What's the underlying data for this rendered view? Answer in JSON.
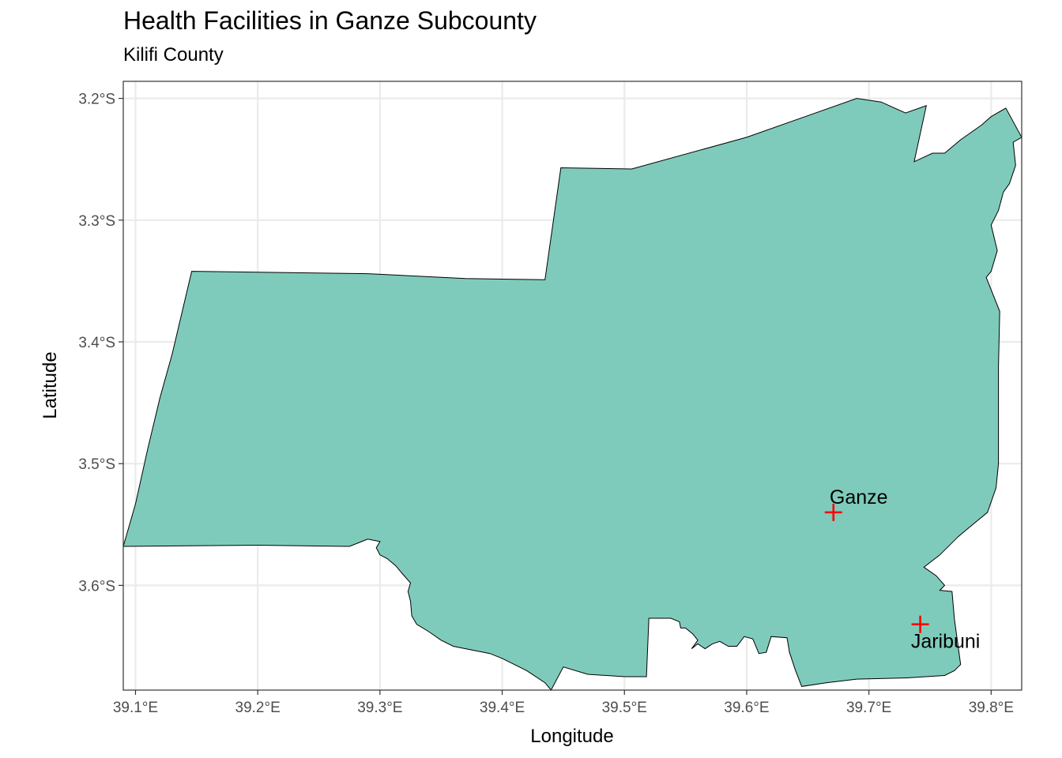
{
  "title": "Health Facilities in Ganze Subcounty",
  "subtitle": "Kilifi County",
  "chart_data": {
    "type": "map",
    "title": "Health Facilities in Ganze Subcounty",
    "subtitle": "Kilifi County",
    "xlabel": "Longitude",
    "ylabel": "Latitude",
    "xlim": [
      39.09,
      39.825
    ],
    "ylim": [
      -3.686,
      -3.186
    ],
    "x_ticks": [
      {
        "value": 39.1,
        "label": "39.1°E"
      },
      {
        "value": 39.2,
        "label": "39.2°E"
      },
      {
        "value": 39.3,
        "label": "39.3°E"
      },
      {
        "value": 39.4,
        "label": "39.4°E"
      },
      {
        "value": 39.5,
        "label": "39.5°E"
      },
      {
        "value": 39.6,
        "label": "39.6°E"
      },
      {
        "value": 39.7,
        "label": "39.7°E"
      },
      {
        "value": 39.8,
        "label": "39.8°E"
      }
    ],
    "y_ticks": [
      {
        "value": -3.2,
        "label": "3.2°S"
      },
      {
        "value": -3.3,
        "label": "3.3°S"
      },
      {
        "value": -3.4,
        "label": "3.4°S"
      },
      {
        "value": -3.5,
        "label": "3.5°S"
      },
      {
        "value": -3.6,
        "label": "3.6°S"
      }
    ],
    "grid": true,
    "polygon_fill": "#7fcbbb",
    "polygon_stroke": "#000000",
    "marker_color": "#ff0000",
    "boundary": [
      [
        39.09,
        -3.568
      ],
      [
        39.1,
        -3.533
      ],
      [
        39.11,
        -3.488
      ],
      [
        39.12,
        -3.446
      ],
      [
        39.13,
        -3.41
      ],
      [
        39.146,
        -3.342
      ],
      [
        39.29,
        -3.344
      ],
      [
        39.37,
        -3.348
      ],
      [
        39.435,
        -3.349
      ],
      [
        39.448,
        -3.257
      ],
      [
        39.506,
        -3.258
      ],
      [
        39.6,
        -3.232
      ],
      [
        39.69,
        -3.2
      ],
      [
        39.71,
        -3.203
      ],
      [
        39.73,
        -3.212
      ],
      [
        39.747,
        -3.206
      ],
      [
        39.737,
        -3.252
      ],
      [
        39.752,
        -3.245
      ],
      [
        39.762,
        -3.245
      ],
      [
        39.775,
        -3.234
      ],
      [
        39.792,
        -3.222
      ],
      [
        39.8,
        -3.215
      ],
      [
        39.812,
        -3.208
      ],
      [
        39.825,
        -3.232
      ],
      [
        39.818,
        -3.236
      ],
      [
        39.82,
        -3.255
      ],
      [
        39.815,
        -3.27
      ],
      [
        39.81,
        -3.277
      ],
      [
        39.806,
        -3.292
      ],
      [
        39.8,
        -3.304
      ],
      [
        39.805,
        -3.325
      ],
      [
        39.8,
        -3.342
      ],
      [
        39.796,
        -3.347
      ],
      [
        39.807,
        -3.375
      ],
      [
        39.806,
        -3.42
      ],
      [
        39.806,
        -3.5
      ],
      [
        39.804,
        -3.52
      ],
      [
        39.797,
        -3.54
      ],
      [
        39.785,
        -3.55
      ],
      [
        39.773,
        -3.56
      ],
      [
        39.758,
        -3.575
      ],
      [
        39.745,
        -3.585
      ],
      [
        39.755,
        -3.592
      ],
      [
        39.762,
        -3.6
      ],
      [
        39.758,
        -3.604
      ],
      [
        39.768,
        -3.605
      ],
      [
        39.77,
        -3.628
      ],
      [
        39.775,
        -3.665
      ],
      [
        39.77,
        -3.67
      ],
      [
        39.762,
        -3.674
      ],
      [
        39.73,
        -3.676
      ],
      [
        39.69,
        -3.677
      ],
      [
        39.665,
        -3.68
      ],
      [
        39.645,
        -3.683
      ],
      [
        39.64,
        -3.67
      ],
      [
        39.635,
        -3.655
      ],
      [
        39.633,
        -3.643
      ],
      [
        39.62,
        -3.642
      ],
      [
        39.616,
        -3.655
      ],
      [
        39.61,
        -3.656
      ],
      [
        39.605,
        -3.644
      ],
      [
        39.598,
        -3.642
      ],
      [
        39.592,
        -3.65
      ],
      [
        39.585,
        -3.65
      ],
      [
        39.578,
        -3.646
      ],
      [
        39.572,
        -3.648
      ],
      [
        39.566,
        -3.652
      ],
      [
        39.56,
        -3.648
      ],
      [
        39.555,
        -3.652
      ],
      [
        39.56,
        -3.645
      ],
      [
        39.556,
        -3.64
      ],
      [
        39.55,
        -3.635
      ],
      [
        39.546,
        -3.635
      ],
      [
        39.545,
        -3.63
      ],
      [
        39.538,
        -3.627
      ],
      [
        39.52,
        -3.627
      ],
      [
        39.518,
        -3.675
      ],
      [
        39.5,
        -3.675
      ],
      [
        39.47,
        -3.673
      ],
      [
        39.45,
        -3.667
      ],
      [
        39.44,
        -3.686
      ],
      [
        39.435,
        -3.68
      ],
      [
        39.42,
        -3.67
      ],
      [
        39.4,
        -3.66
      ],
      [
        39.39,
        -3.656
      ],
      [
        39.37,
        -3.652
      ],
      [
        39.36,
        -3.65
      ],
      [
        39.35,
        -3.645
      ],
      [
        39.34,
        -3.638
      ],
      [
        39.33,
        -3.632
      ],
      [
        39.326,
        -3.625
      ],
      [
        39.325,
        -3.613
      ],
      [
        39.323,
        -3.605
      ],
      [
        39.325,
        -3.598
      ],
      [
        39.318,
        -3.59
      ],
      [
        39.313,
        -3.584
      ],
      [
        39.306,
        -3.578
      ],
      [
        39.3,
        -3.575
      ],
      [
        39.297,
        -3.569
      ],
      [
        39.3,
        -3.564
      ],
      [
        39.29,
        -3.562
      ],
      [
        39.285,
        -3.564
      ],
      [
        39.275,
        -3.568
      ],
      [
        39.2,
        -3.567
      ],
      [
        39.09,
        -3.568
      ]
    ],
    "points": [
      {
        "name": "Ganze",
        "lon": 39.671,
        "lat": -3.54,
        "label_position": "above"
      },
      {
        "name": "Jaribuni",
        "lon": 39.742,
        "lat": -3.632,
        "label_position": "below"
      }
    ]
  }
}
